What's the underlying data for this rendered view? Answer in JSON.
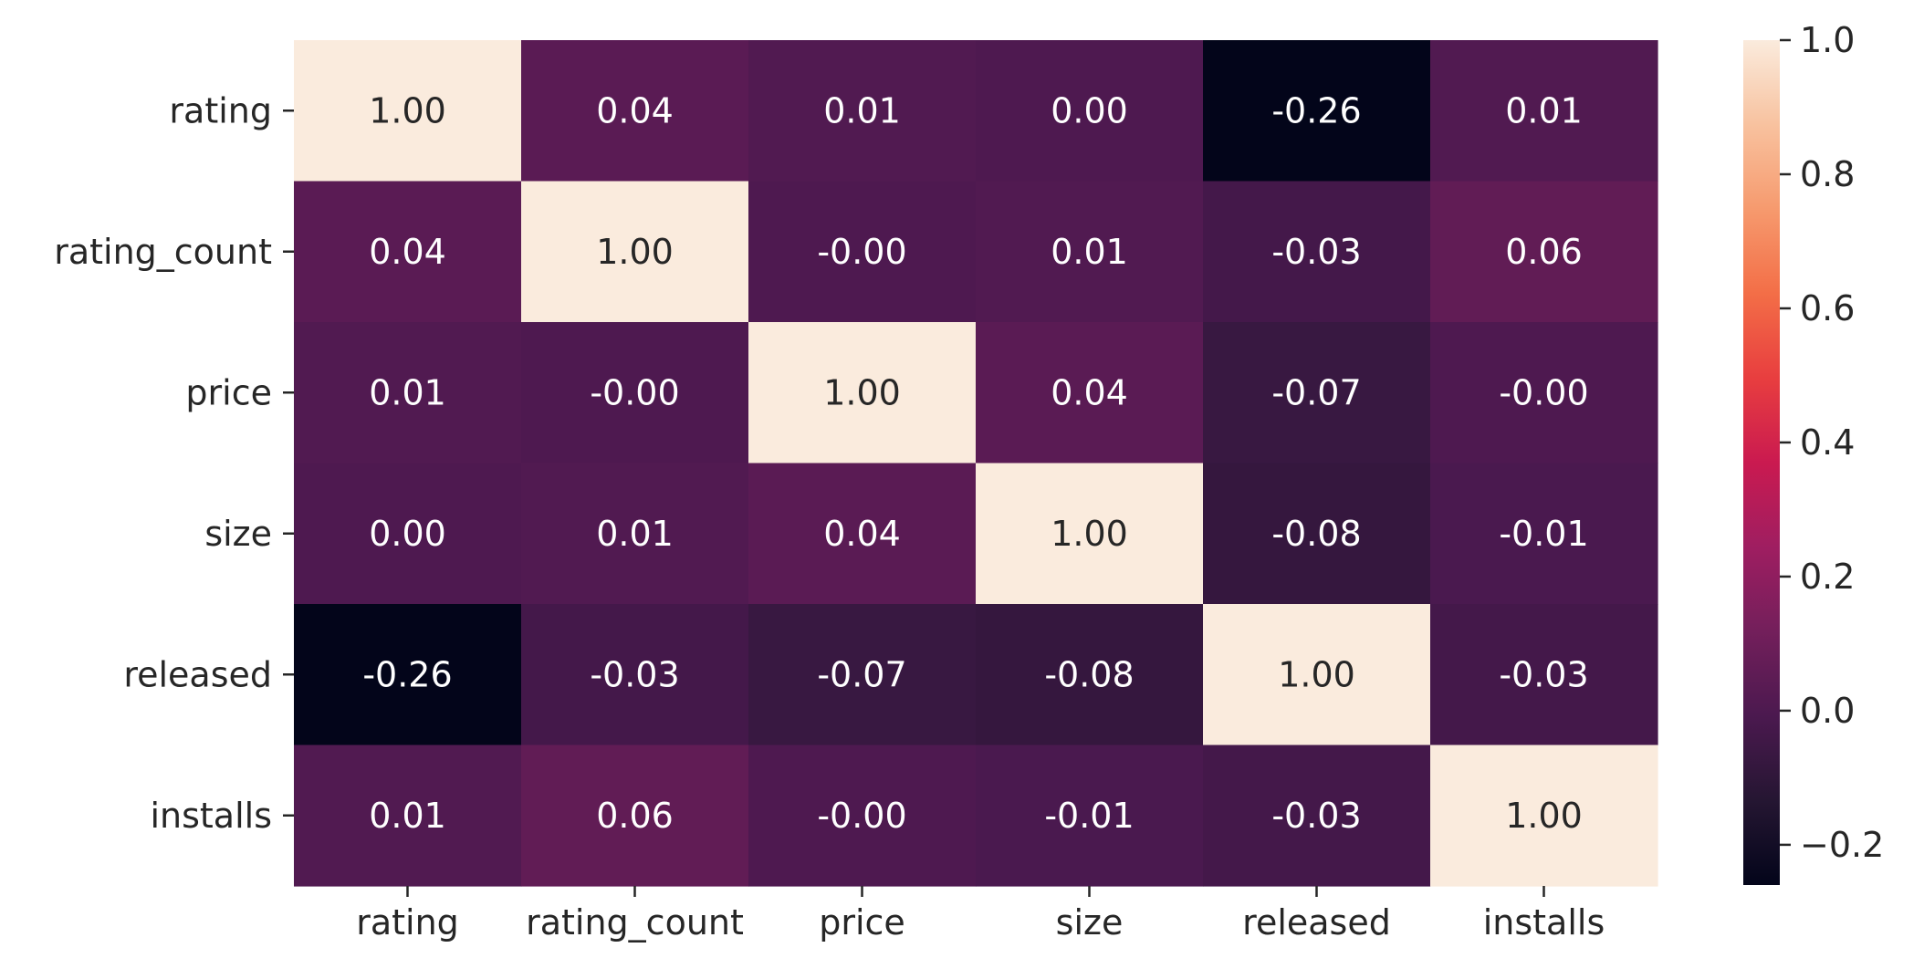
{
  "chart_data": {
    "type": "heatmap",
    "title": "",
    "xlabel": "",
    "ylabel": "",
    "x_categories": [
      "rating",
      "rating_count",
      "price",
      "size",
      "released",
      "installs"
    ],
    "y_categories": [
      "rating",
      "rating_count",
      "price",
      "size",
      "released",
      "installs"
    ],
    "values": [
      [
        1.0,
        0.04,
        0.01,
        0.0,
        -0.26,
        0.01
      ],
      [
        0.04,
        1.0,
        -0.0,
        0.01,
        -0.03,
        0.06
      ],
      [
        0.01,
        -0.0,
        1.0,
        0.04,
        -0.07,
        -0.0
      ],
      [
        0.0,
        0.01,
        0.04,
        1.0,
        -0.08,
        -0.01
      ],
      [
        -0.26,
        -0.03,
        -0.07,
        -0.08,
        1.0,
        -0.03
      ],
      [
        0.01,
        0.06,
        -0.0,
        -0.01,
        -0.03,
        1.0
      ]
    ],
    "cell_labels": [
      [
        "1.00",
        "0.04",
        "0.01",
        "0.00",
        "-0.26",
        "0.01"
      ],
      [
        "0.04",
        "1.00",
        "-0.00",
        "0.01",
        "-0.03",
        "0.06"
      ],
      [
        "0.01",
        "-0.00",
        "1.00",
        "0.04",
        "-0.07",
        "-0.00"
      ],
      [
        "0.00",
        "0.01",
        "0.04",
        "1.00",
        "-0.08",
        "-0.01"
      ],
      [
        "-0.26",
        "-0.03",
        "-0.07",
        "-0.08",
        "1.00",
        "-0.03"
      ],
      [
        "0.01",
        "0.06",
        "-0.00",
        "-0.01",
        "-0.03",
        "1.00"
      ]
    ],
    "value_range": [
      -0.26,
      1.0
    ],
    "colorbar": {
      "ticks": [
        1.0,
        0.8,
        0.6,
        0.4,
        0.2,
        0.0,
        -0.2
      ],
      "tick_labels": [
        "1.0",
        "0.8",
        "0.6",
        "0.4",
        "0.2",
        "0.0",
        "−0.2"
      ]
    },
    "colormap": "rocket",
    "grid": false,
    "legend": "colorbar-right"
  }
}
